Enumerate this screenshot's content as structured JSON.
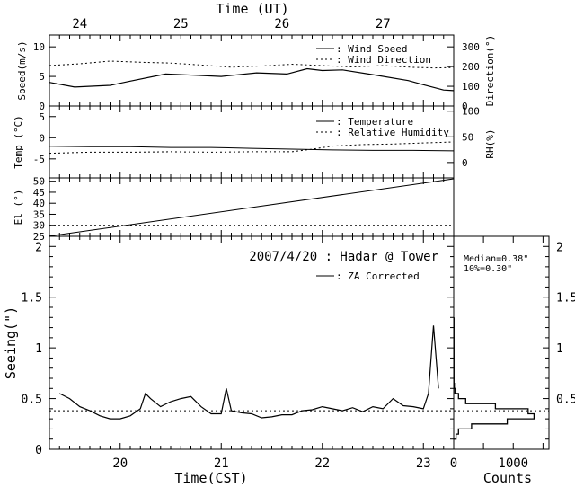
{
  "figure": {
    "top_axis_title": "Time (UT)",
    "bottom_axis_title": "Time(CST)",
    "colors": {
      "line": "#000000",
      "background": "#ffffff"
    }
  },
  "chart_data": [
    {
      "id": "wind",
      "type": "line",
      "xlim": [
        19.3,
        23.3
      ],
      "top_x_ticks": [
        {
          "label": "24",
          "value": 19.6
        },
        {
          "label": "25",
          "value": 20.6
        },
        {
          "label": "26",
          "value": 21.6
        },
        {
          "label": "27",
          "value": 22.6
        }
      ],
      "ylabel": "Speed(m/s)",
      "ylim": [
        0,
        12
      ],
      "yticks": [
        "0",
        "5",
        "10"
      ],
      "y2label": "Direction(°)",
      "y2lim": [
        0,
        360
      ],
      "y2ticks": [
        "0",
        "100",
        "200",
        "300"
      ],
      "legend": [
        {
          "label": ": Wind Speed",
          "style": "solid"
        },
        {
          "label": ": Wind Direction",
          "style": "dotted"
        }
      ],
      "series": [
        {
          "name": "Wind Speed",
          "axis": "left",
          "style": "solid",
          "x": [
            19.3,
            19.55,
            19.9,
            20.1,
            20.45,
            20.75,
            21.0,
            21.35,
            21.65,
            21.85,
            22.0,
            22.2,
            22.5,
            22.85,
            23.0,
            23.2,
            23.3
          ],
          "y": [
            4.0,
            3.2,
            3.5,
            4.2,
            5.4,
            5.2,
            5.0,
            5.6,
            5.4,
            6.3,
            6.0,
            6.1,
            5.3,
            4.3,
            3.6,
            2.7,
            2.6
          ]
        },
        {
          "name": "Wind Direction",
          "axis": "right",
          "style": "dotted",
          "x": [
            19.3,
            19.6,
            19.9,
            20.2,
            20.5,
            20.8,
            21.1,
            21.4,
            21.7,
            22.0,
            22.3,
            22.6,
            22.9,
            23.1,
            23.3
          ],
          "y": [
            205,
            214,
            228,
            222,
            218,
            208,
            197,
            203,
            212,
            205,
            198,
            205,
            196,
            193,
            195
          ]
        }
      ]
    },
    {
      "id": "temp",
      "type": "line",
      "xlim": [
        19.3,
        23.3
      ],
      "ylabel": "Temp (°C)",
      "ylim": [
        -9.5,
        7.5
      ],
      "yticks": [
        "-5",
        "0",
        "5"
      ],
      "y2label": "RH(%)",
      "y2lim": [
        -30,
        110
      ],
      "y2ticks": [
        "0",
        "50",
        "100"
      ],
      "legend": [
        {
          "label": ": Temperature",
          "style": "solid"
        },
        {
          "label": ": Relative Humidity",
          "style": "dotted"
        }
      ],
      "series": [
        {
          "name": "Temperature",
          "axis": "left",
          "style": "solid",
          "x": [
            19.3,
            19.7,
            20.1,
            20.5,
            20.9,
            21.3,
            21.7,
            22.1,
            22.5,
            22.9,
            23.3
          ],
          "y": [
            -2.0,
            -2.1,
            -2.1,
            -2.3,
            -2.3,
            -2.5,
            -2.7,
            -2.9,
            -3.0,
            -3.0,
            -3.1
          ]
        },
        {
          "name": "Relative Humidity",
          "axis": "right",
          "style": "dotted",
          "x": [
            19.3,
            19.7,
            20.1,
            20.5,
            20.9,
            21.3,
            21.7,
            21.9,
            22.1,
            22.4,
            22.7,
            23.0,
            23.3
          ],
          "y": [
            18,
            20,
            20,
            21,
            20,
            21,
            21,
            26,
            32,
            35,
            36,
            38,
            40
          ]
        }
      ]
    },
    {
      "id": "elevation",
      "type": "line",
      "xlim": [
        19.3,
        23.3
      ],
      "ylabel": "El (°)",
      "ylim": [
        25,
        51.5
      ],
      "yticks": [
        "25",
        "30",
        "35",
        "40",
        "45",
        "50"
      ],
      "reference_line": 30,
      "series": [
        {
          "name": "El",
          "style": "solid",
          "x": [
            19.3,
            23.3
          ],
          "y": [
            25.1,
            51.1
          ]
        }
      ]
    },
    {
      "id": "seeing",
      "type": "line",
      "title": "2007/4/20 : Hadar @ Tower",
      "xlabel": "Time(CST)",
      "xlim": [
        19.3,
        23.3
      ],
      "xticks": [
        "20",
        "21",
        "22",
        "23"
      ],
      "ylabel": "Seeing(\")",
      "ylim": [
        0,
        2.1
      ],
      "yticks": [
        "0",
        "0.5",
        "1",
        "1.5",
        "2"
      ],
      "median_line": 0.38,
      "legend": [
        {
          "label": ": ZA Corrected",
          "style": "solid"
        }
      ],
      "series": [
        {
          "name": "ZA Corrected",
          "style": "solid",
          "x": [
            19.4,
            19.5,
            19.6,
            19.7,
            19.8,
            19.9,
            20.0,
            20.1,
            20.2,
            20.25,
            20.3,
            20.4,
            20.5,
            20.6,
            20.7,
            20.8,
            20.9,
            21.0,
            21.05,
            21.1,
            21.2,
            21.3,
            21.4,
            21.5,
            21.6,
            21.7,
            21.8,
            21.9,
            22.0,
            22.1,
            22.2,
            22.3,
            22.4,
            22.5,
            22.6,
            22.7,
            22.8,
            22.9,
            23.0,
            23.05,
            23.1,
            23.15
          ],
          "y": [
            0.55,
            0.5,
            0.42,
            0.38,
            0.33,
            0.3,
            0.3,
            0.33,
            0.4,
            0.55,
            0.5,
            0.42,
            0.47,
            0.5,
            0.52,
            0.42,
            0.35,
            0.35,
            0.6,
            0.38,
            0.36,
            0.35,
            0.31,
            0.32,
            0.34,
            0.34,
            0.38,
            0.39,
            0.42,
            0.4,
            0.38,
            0.41,
            0.37,
            0.42,
            0.4,
            0.5,
            0.43,
            0.42,
            0.4,
            0.55,
            1.22,
            0.6
          ]
        }
      ]
    },
    {
      "id": "histogram",
      "type": "bar",
      "annotations": [
        "Median=0.38\"",
        "10%=0.30\""
      ],
      "xlabel": "Counts",
      "xlim": [
        0,
        1600
      ],
      "xticks": [
        "0",
        "1000"
      ],
      "ylim": [
        0,
        2.1
      ],
      "yticks": [
        "0.5",
        "1",
        "1.5",
        "2"
      ],
      "median_line": 0.38,
      "bin_edges": [
        0.1,
        0.15,
        0.2,
        0.25,
        0.3,
        0.35,
        0.4,
        0.45,
        0.5,
        0.55,
        0.6,
        0.65
      ],
      "counts": [
        40,
        80,
        300,
        900,
        1350,
        1250,
        700,
        200,
        80,
        20,
        10
      ],
      "trail": {
        "from": 0.65,
        "to": 1.3,
        "count": 5
      }
    }
  ]
}
